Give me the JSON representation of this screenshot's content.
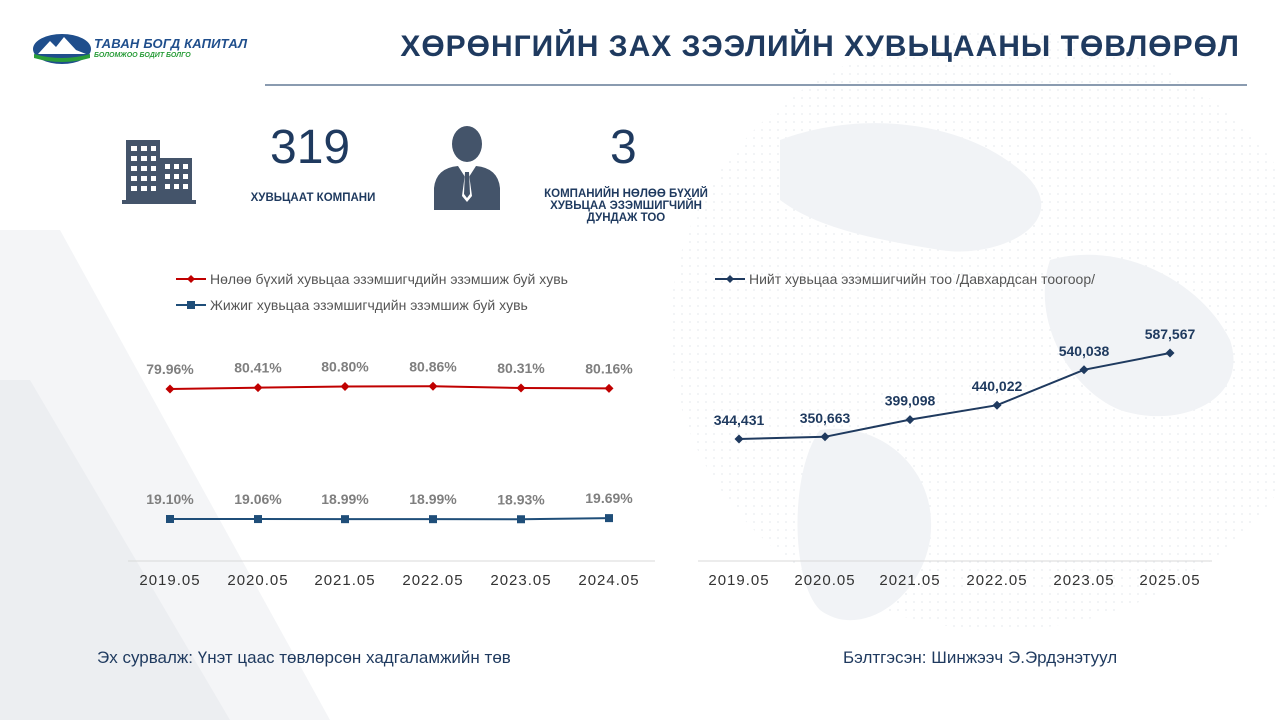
{
  "header": {
    "logo_name": "ТАВАН БОГД КАПИТАЛ",
    "logo_tagline": "БОЛОМЖОО БОДИТ БОЛГО",
    "title": "ХӨРӨНГИЙН ЗАХ ЗЭЭЛИЙН ХУВЬЦААНЫ ТӨВЛӨРӨЛ"
  },
  "stats": {
    "companies_value": "319",
    "companies_label": "ХУВЬЦААТ  КОМПАНИ",
    "holders_value": "3",
    "holders_label_1": "КОМПАНИЙН НӨЛӨӨ БҮХИЙ",
    "holders_label_2": "ХУВЬЦАА ЭЗЭМШИГЧИЙН",
    "holders_label_3": "ДУНДАЖ ТОО"
  },
  "chart_data": [
    {
      "type": "line",
      "categories": [
        "2019.05",
        "2020.05",
        "2021.05",
        "2022.05",
        "2023.05",
        "2024.05"
      ],
      "series": [
        {
          "name": "Нөлөө бүхий хувьцаа эзэмшигчдийн эзэмшиж буй хувь",
          "values": [
            79.96,
            80.41,
            80.8,
            80.86,
            80.31,
            80.16
          ],
          "labels": [
            "79.96%",
            "80.41%",
            "80.80%",
            "80.86%",
            "80.31%",
            "80.16%"
          ],
          "color": "#c00000",
          "marker": "diamond"
        },
        {
          "name": "Жижиг хувьцаа эзэмшигчдийн эзэмшиж буй хувь",
          "values": [
            19.1,
            19.06,
            18.99,
            18.99,
            18.93,
            19.69
          ],
          "labels": [
            "19.10%",
            "19.06%",
            "18.99%",
            "18.99%",
            "18.93%",
            "19.69%"
          ],
          "color": "#1f4e79",
          "marker": "square"
        }
      ],
      "grid": false,
      "legend_position": "top"
    },
    {
      "type": "line",
      "categories": [
        "2019.05",
        "2020.05",
        "2021.05",
        "2022.05",
        "2023.05",
        "2025.05"
      ],
      "series": [
        {
          "name": "Нийт хувьцаа эзэмшигчийн тоо /Давхардсан  тоогоор/",
          "values": [
            344431,
            350663,
            399098,
            440022,
            540038,
            587567
          ],
          "labels": [
            "344,431",
            "350,663",
            "399,098",
            "440,022",
            "540,038",
            "587,567"
          ],
          "color": "#1f3a5f",
          "marker": "diamond"
        }
      ],
      "grid": false,
      "legend_position": "top"
    }
  ],
  "footer": {
    "source": "Эх сурвалж: Үнэт цаас төвлөрсөн хадгаламжийн төв",
    "prepared_by": "Бэлтгэсэн: Шинжээч Э.Эрдэнэтуул"
  },
  "colors": {
    "primary": "#1f3a5f",
    "red_series": "#c00000",
    "blue_series": "#1f4e79",
    "logo_green": "#2a9d3a"
  }
}
